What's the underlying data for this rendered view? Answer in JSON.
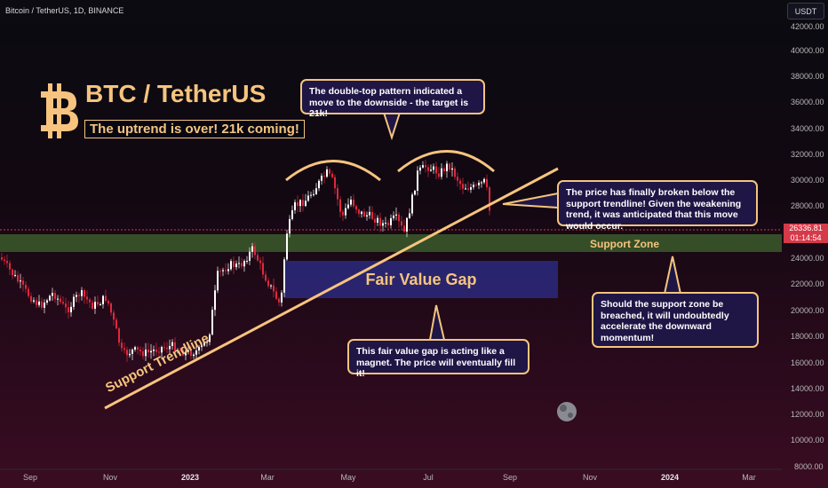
{
  "header": {
    "symbol": "Bitcoin / TetherUS, 1D, BINANCE",
    "currency": "USDT"
  },
  "price_axis": {
    "labels": [
      "42000.00",
      "40000.00",
      "38000.00",
      "36000.00",
      "34000.00",
      "32000.00",
      "30000.00",
      "28000.00",
      "24000.00",
      "22000.00",
      "20000.00",
      "18000.00",
      "16000.00",
      "14000.00",
      "12000.00",
      "10000.00",
      "8000.00"
    ],
    "last_price": "26336.81",
    "countdown": "01:14:54"
  },
  "time_axis": {
    "labels": [
      "Sep",
      "Nov",
      "2023",
      "Mar",
      "May",
      "Jul",
      "Sep",
      "Nov",
      "2024",
      "Mar"
    ]
  },
  "annotations": {
    "title": "BTC / TetherUS",
    "subtitle": "The uptrend is over! 21k coming!",
    "callout_double_top": "The double-top pattern indicated a move to the downside - the target is 21k!",
    "callout_breakdown": "The price has finally broken below the support trendline! Given the weakening trend, it was anticipated that this move would occur.",
    "callout_support": "Should the support zone be breached, it will undoubtedly accelerate the downward momentum!",
    "callout_fvg": "This fair value gap is acting like a magnet. The price will eventually fill it!",
    "support_zone": "Support Zone",
    "fair_value_gap": "Fair Value Gap",
    "support_trendline": "Support Trendline"
  },
  "colors": {
    "accent": "#f6c47e",
    "bull": "#ffffff",
    "bear": "#e0283c",
    "callout_bg": "#1f1646",
    "support_zone": "#3c5a2c",
    "fvg": "#2b2878"
  }
}
